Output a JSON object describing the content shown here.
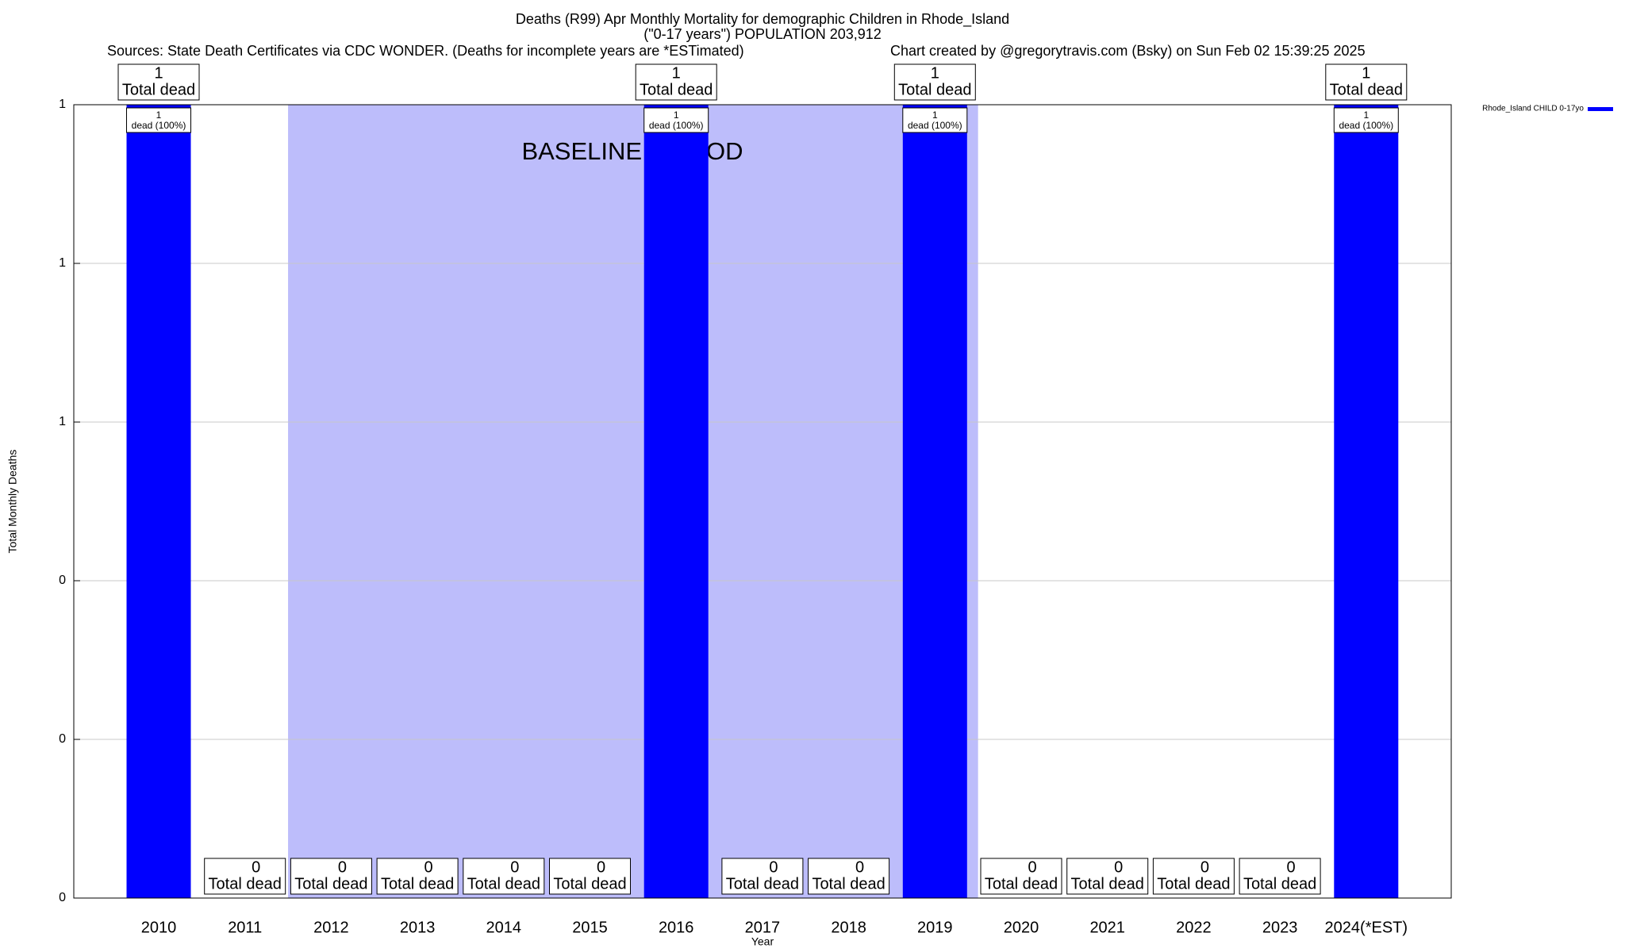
{
  "chart_data": {
    "type": "bar",
    "title": "Deaths (R99) Apr Monthly Mortality for demographic Children in Rhode_Island",
    "subtitle": "(\"0-17 years\") POPULATION 203,912",
    "sources": "Sources: State Death Certificates via CDC WONDER. (Deaths for incomplete years are *ESTimated)",
    "credit": "Chart created by @gregorytravis.com (Bsky) on Sun Feb 02 15:39:25 2025",
    "x_label": "Year",
    "y_label": "Total Monthly Deaths",
    "categories": [
      "2010",
      "2011",
      "2012",
      "2013",
      "2014",
      "2015",
      "2016",
      "2017",
      "2018",
      "2019",
      "2020",
      "2021",
      "2022",
      "2023",
      "2024(*EST)"
    ],
    "series": [
      {
        "name": "Rhode_Island CHILD 0-17yo",
        "color": "#0000ff",
        "values": [
          1,
          0,
          0,
          0,
          0,
          0,
          1,
          0,
          0,
          1,
          0,
          0,
          0,
          0,
          1
        ]
      }
    ],
    "total_label": "Total dead",
    "share_label": "dead (100%)",
    "baseline": {
      "label": "BASELINE PERIOD",
      "start": "2012",
      "end": "2019",
      "color": "#bdbdfb"
    },
    "ylim": [
      0,
      1
    ],
    "yticks": [
      0,
      {
        "value": 0.2,
        "label": "0"
      },
      {
        "value": 0.4,
        "label": "0"
      },
      {
        "value": 0.6,
        "label": "1"
      },
      {
        "value": 0.8,
        "label": "1"
      },
      1
    ],
    "grid": true,
    "legend": "top-right"
  }
}
